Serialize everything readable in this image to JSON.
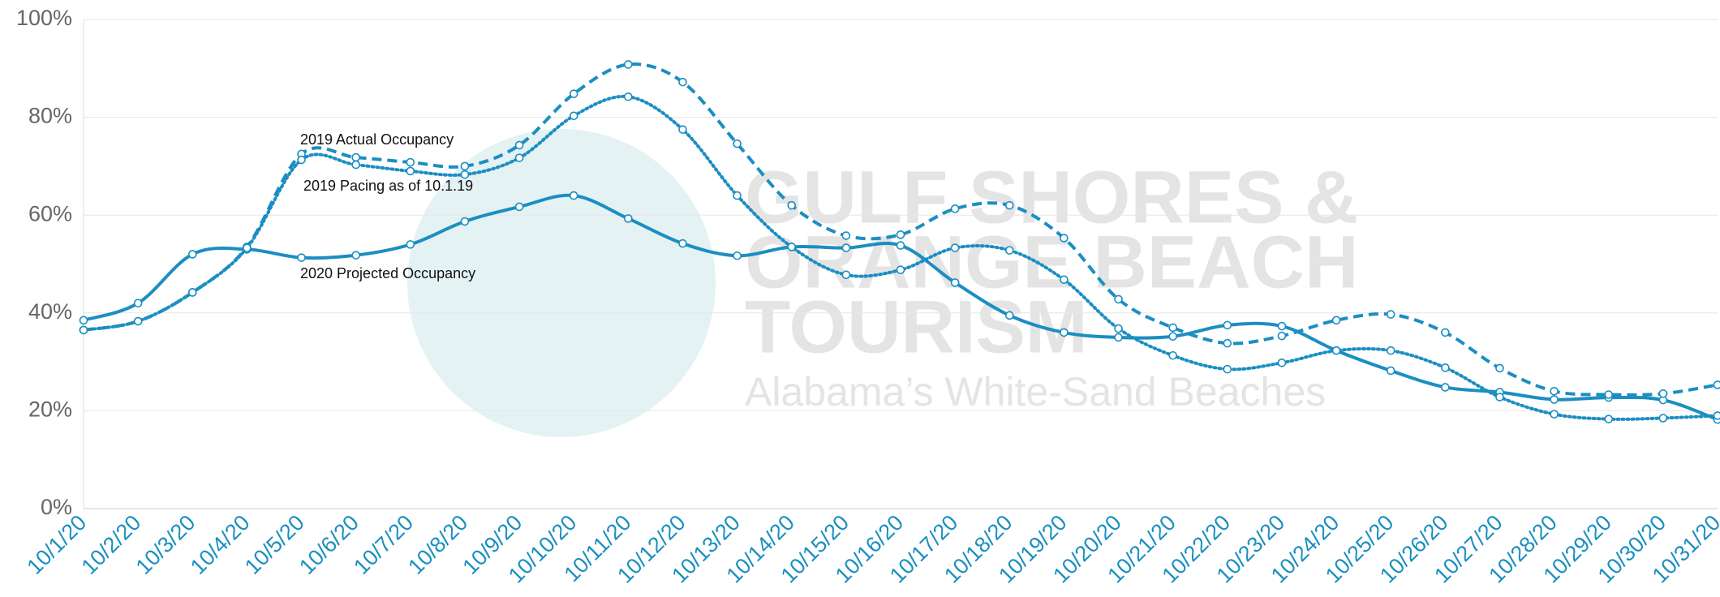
{
  "chart_data": {
    "type": "line",
    "watermark": {
      "lines": [
        "GULF SHORES &",
        "ORANGE BEACH",
        "TOURISM"
      ],
      "tagline": "Alabama’s White-Sand Beaches"
    },
    "x": [
      "10/1/20",
      "10/2/20",
      "10/3/20",
      "10/4/20",
      "10/5/20",
      "10/6/20",
      "10/7/20",
      "10/8/20",
      "10/9/20",
      "10/10/20",
      "10/11/20",
      "10/12/20",
      "10/13/20",
      "10/14/20",
      "10/15/20",
      "10/16/20",
      "10/17/20",
      "10/18/20",
      "10/19/20",
      "10/20/20",
      "10/21/20",
      "10/22/20",
      "10/23/20",
      "10/24/20",
      "10/25/20",
      "10/26/20",
      "10/27/20",
      "10/28/20",
      "10/29/20",
      "10/30/20",
      "10/31/20"
    ],
    "series": [
      {
        "name": "2020 Projected Occupancy",
        "color": "#1b8ec2",
        "dash": "solid",
        "values": [
          38.5,
          42,
          52,
          53,
          51.3,
          51.8,
          54,
          58.7,
          61.7,
          64,
          59.3,
          54.2,
          51.7,
          53.5,
          53.3,
          53.8,
          46.2,
          39.5,
          36,
          35,
          35.2,
          37.5,
          37.3,
          32.3,
          28.2,
          24.8,
          23.8,
          22.3,
          22.7,
          22.2,
          18.2
        ]
      },
      {
        "name": "2019 Actual Occupancy",
        "color": "#1b8ec2",
        "dash": "dashed",
        "values": [
          36.5,
          38.3,
          44.2,
          53.5,
          72.5,
          71.8,
          70.8,
          70,
          74.3,
          84.8,
          90.8,
          87.2,
          74.6,
          62,
          55.8,
          56,
          61.3,
          62,
          55.3,
          42.8,
          37,
          33.8,
          35.3,
          38.5,
          39.7,
          36,
          28.7,
          24,
          23.3,
          23.5,
          25.3
        ]
      },
      {
        "name": "2019 Pacing as of 10.1.19",
        "color": "#1b8ec2",
        "dash": "dotted",
        "values": [
          36.5,
          38.3,
          44.2,
          53.3,
          71.3,
          70.3,
          69,
          68.3,
          71.7,
          80.3,
          84.2,
          77.5,
          64,
          53.5,
          47.8,
          48.8,
          53.3,
          52.8,
          46.8,
          36.8,
          31.3,
          28.5,
          29.8,
          32.3,
          32.3,
          28.8,
          22.8,
          19.3,
          18.3,
          18.5,
          19
        ]
      }
    ],
    "ylim": [
      0,
      100
    ],
    "yticks": [
      {
        "value": 0,
        "label": "0%"
      },
      {
        "value": 20,
        "label": "20%"
      },
      {
        "value": 40,
        "label": "40%"
      },
      {
        "value": 60,
        "label": "60%"
      },
      {
        "value": 80,
        "label": "80%"
      },
      {
        "value": 100,
        "label": "100%"
      }
    ],
    "grid": true
  }
}
